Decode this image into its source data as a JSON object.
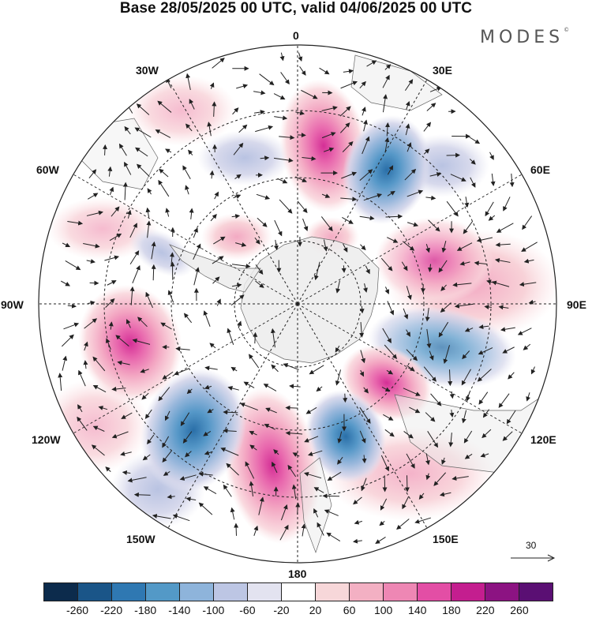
{
  "header": {
    "title": "Base 28/05/2025 00 UTC, valid 04/06/2025 00 UTC",
    "logo": "MODES",
    "logo_mark": "©"
  },
  "map": {
    "projection": "south-polar-stereographic",
    "longitude_labels": {
      "lon_0": "0",
      "lon_30e": "30E",
      "lon_60e": "60E",
      "lon_90e": "90E",
      "lon_120e": "120E",
      "lon_150e": "150E",
      "lon_180": "180",
      "lon_150w": "150W",
      "lon_120w": "120W",
      "lon_90w": "90W",
      "lon_60w": "60W",
      "lon_30w": "30W"
    },
    "anomaly_centers": [
      {
        "lon": 15,
        "lat": -45,
        "value": 200
      },
      {
        "lon": 45,
        "lat": -45,
        "value": -180
      },
      {
        "lon": 75,
        "lat": -50,
        "value": 130
      },
      {
        "lon": 100,
        "lat": -50,
        "value": -110
      },
      {
        "lon": 125,
        "lat": -55,
        "value": 150
      },
      {
        "lon": 150,
        "lat": -45,
        "value": -200
      },
      {
        "lon": 180,
        "lat": -45,
        "value": 230
      },
      {
        "lon": -150,
        "lat": -45,
        "value": -170
      },
      {
        "lon": -110,
        "lat": -45,
        "value": 180
      },
      {
        "lon": -60,
        "lat": -55,
        "value": -60
      },
      {
        "lon": -30,
        "lat": -40,
        "value": 60
      }
    ],
    "reference_vector": {
      "label": "30"
    }
  },
  "colorbar": {
    "colors": [
      "#0c2b4c",
      "#1a5588",
      "#2f78b2",
      "#5399c7",
      "#8eb4db",
      "#bdc6e4",
      "#e3e3f0",
      "#ffffff",
      "#f7d7d9",
      "#f3b0c3",
      "#ee87b4",
      "#e34ea5",
      "#c41e8f",
      "#8c1382",
      "#5a0f73"
    ],
    "ticks": [
      "-260",
      "-220",
      "-180",
      "-140",
      "-100",
      "-60",
      "-20",
      "20",
      "60",
      "100",
      "140",
      "180",
      "220",
      "260"
    ]
  }
}
